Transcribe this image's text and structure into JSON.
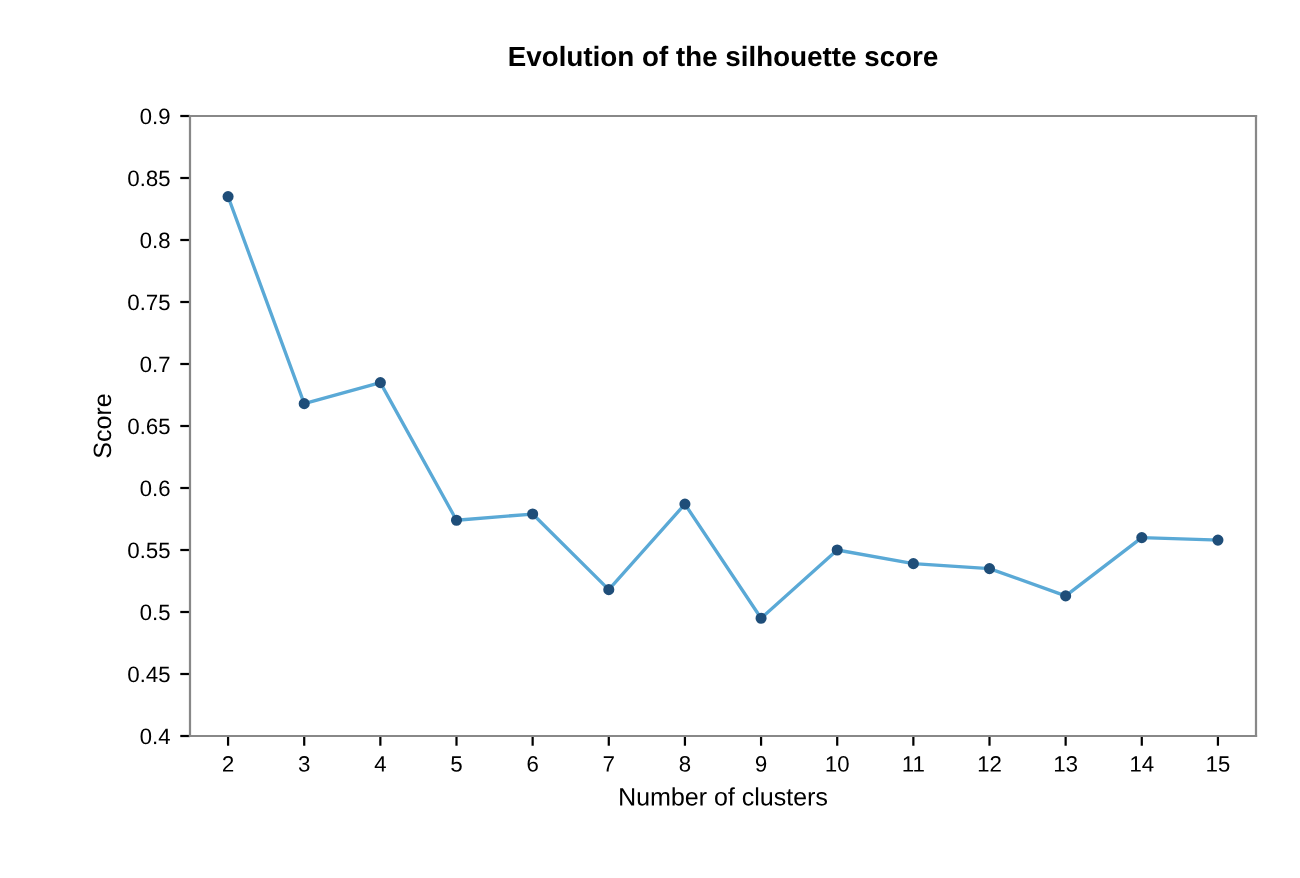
{
  "chart_data": {
    "type": "line",
    "title": "Evolution of the silhouette score",
    "xlabel": "Number of clusters",
    "ylabel": "Score",
    "categories": [
      "2",
      "3",
      "4",
      "5",
      "6",
      "7",
      "8",
      "9",
      "10",
      "11",
      "12",
      "13",
      "14",
      "15"
    ],
    "series": [
      {
        "color": "#5aa9d6",
        "values": [
          0.835,
          0.668,
          0.685,
          0.574,
          0.579,
          0.518,
          0.587,
          0.495,
          0.55,
          0.539,
          0.535,
          0.513,
          0.56,
          0.558
        ]
      }
    ],
    "ylim": [
      0.4,
      0.9
    ],
    "yticks": [
      0.4,
      0.45,
      0.5,
      0.55,
      0.6,
      0.65,
      0.7,
      0.75,
      0.8,
      0.85,
      0.9
    ],
    "marker": "circle",
    "line_style": "solid",
    "grid": false
  }
}
